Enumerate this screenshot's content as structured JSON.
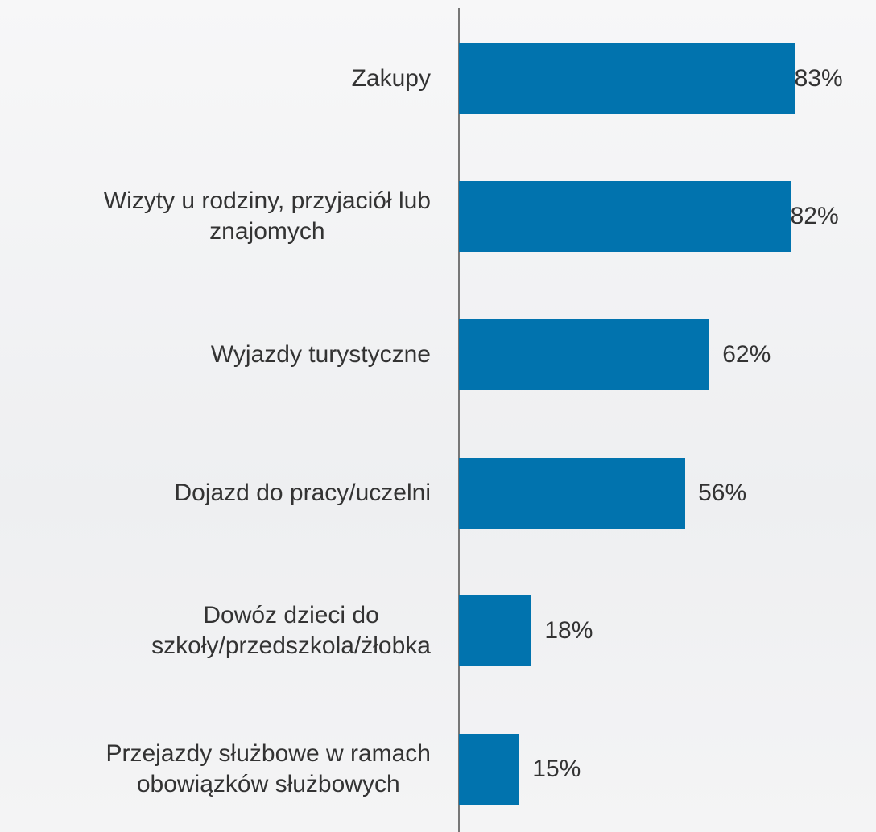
{
  "chart_data": {
    "type": "barh",
    "categories": [
      "Zakupy",
      "Wizyty u rodziny, przyjaciół lub\nznajomych",
      "Wyjazdy turystyczne",
      "Dojazd do pracy/uczelni",
      "Dowóz dzieci do\nszkoły/przedszkola/żłobka",
      "Przejazdy służbowe w ramach\nobowiązków służbowych"
    ],
    "values": [
      83,
      82,
      62,
      56,
      18,
      15
    ],
    "value_labels": [
      "83%",
      "82%",
      "62%",
      "56%",
      "18%",
      "15%"
    ],
    "color": "#0173ae",
    "xlim": [
      0,
      100
    ]
  }
}
